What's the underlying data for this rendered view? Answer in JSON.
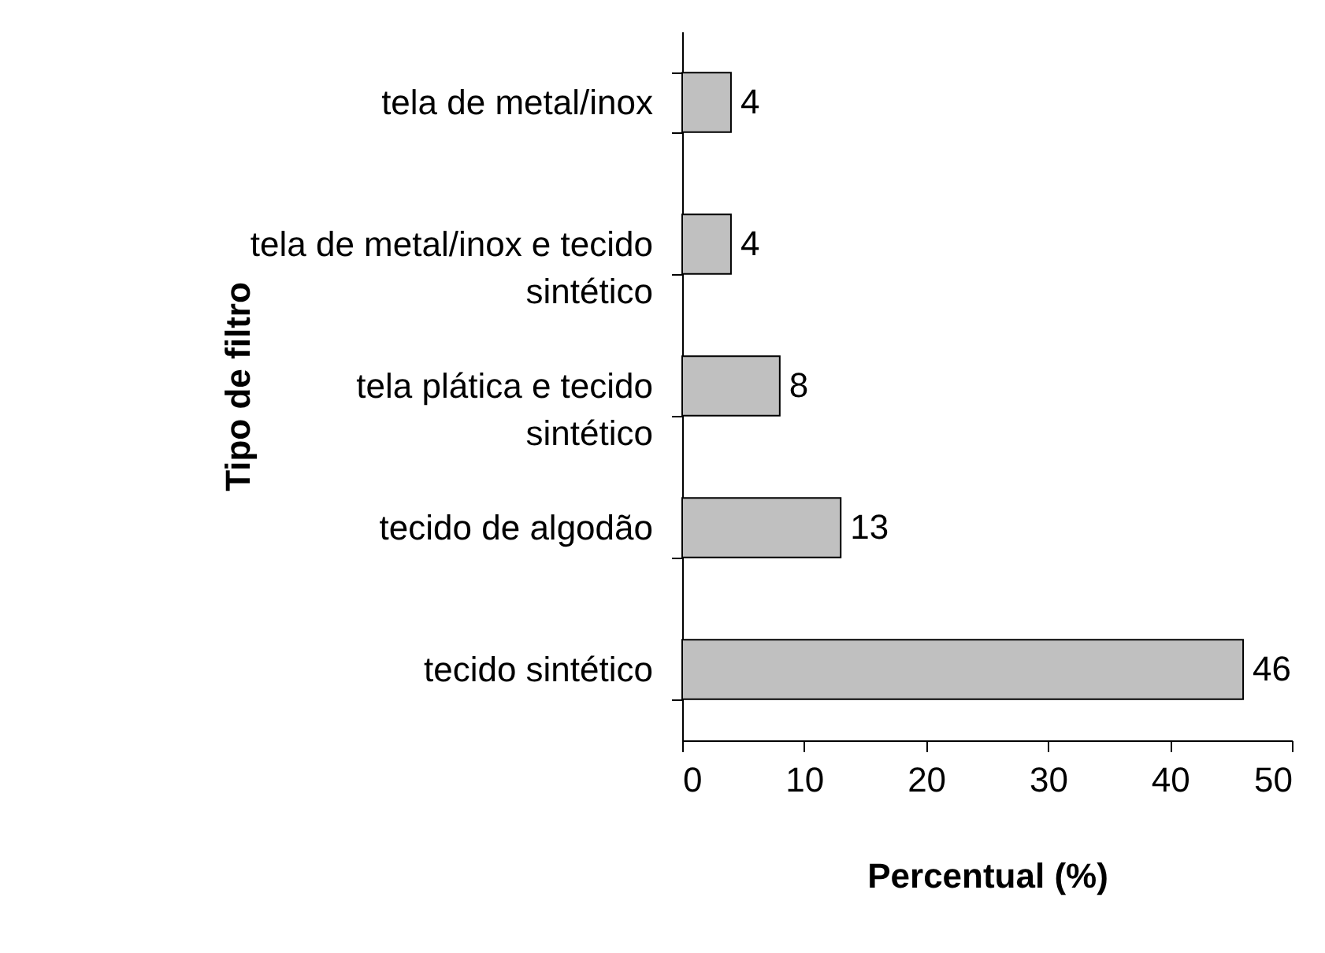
{
  "chart_data": {
    "type": "bar",
    "orientation": "horizontal",
    "xlabel": "Percentual (%)",
    "ylabel": "Tipo de filtro",
    "categories": [
      "tela de metal/inox",
      "tela de metal/inox e tecido sintético",
      "tela plática e tecido sintético",
      "tecido de algodão",
      "tecido sintético"
    ],
    "values": [
      4,
      4,
      8,
      13,
      46
    ],
    "color": "#c0c0c0",
    "data_labels": true,
    "xlim": [
      0,
      50
    ],
    "xticks": [
      0,
      10,
      20,
      30,
      40,
      50
    ],
    "grid": false
  }
}
